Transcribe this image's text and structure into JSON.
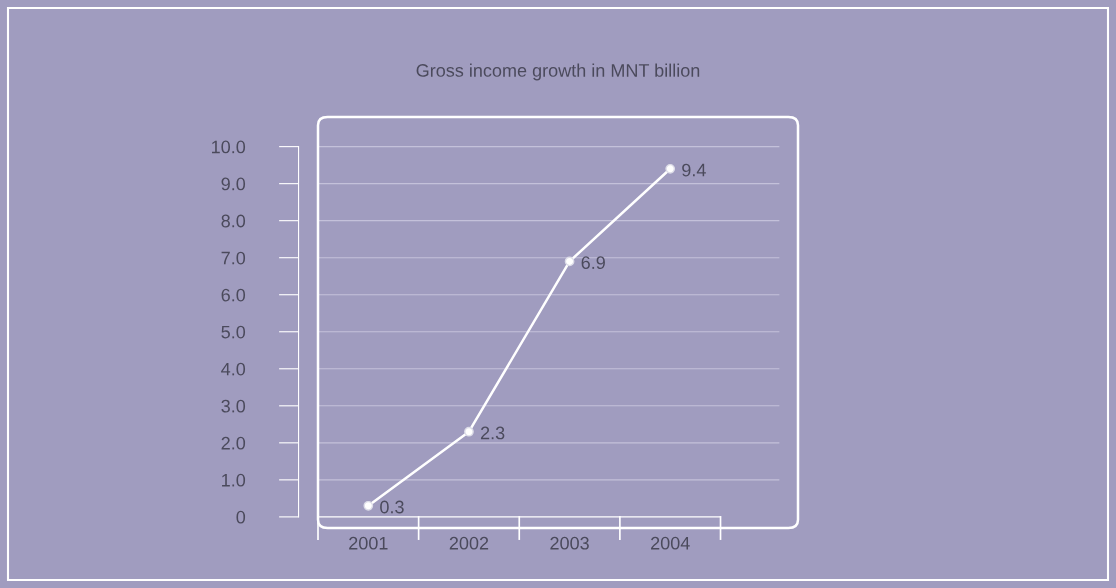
{
  "chart_data": {
    "type": "line",
    "title": "Gross income growth in MNT billion",
    "categories": [
      "2001",
      "2002",
      "2003",
      "2004"
    ],
    "series": [
      {
        "color": "#ffffff",
        "values": [
          0.3,
          2.3,
          6.9,
          9.4
        ]
      }
    ],
    "ylim": [
      -0.3,
      10.8
    ],
    "yticks": [
      0,
      {
        "value": 1,
        "label": "1.0"
      },
      {
        "value": 2,
        "label": "2.0"
      },
      {
        "value": 3,
        "label": "3.0"
      },
      {
        "value": 4,
        "label": "4.0"
      },
      {
        "value": 5,
        "label": "5.0"
      },
      {
        "value": 6,
        "label": "6.0"
      },
      {
        "value": 7,
        "label": "7.0"
      },
      {
        "value": 8,
        "label": "8.0"
      },
      {
        "value": 9,
        "label": "9.0"
      },
      {
        "value": 10,
        "label": "10.0"
      }
    ],
    "grid": "y",
    "marker": "circle",
    "line_style": "solid",
    "data_labels": true,
    "legend": false
  }
}
